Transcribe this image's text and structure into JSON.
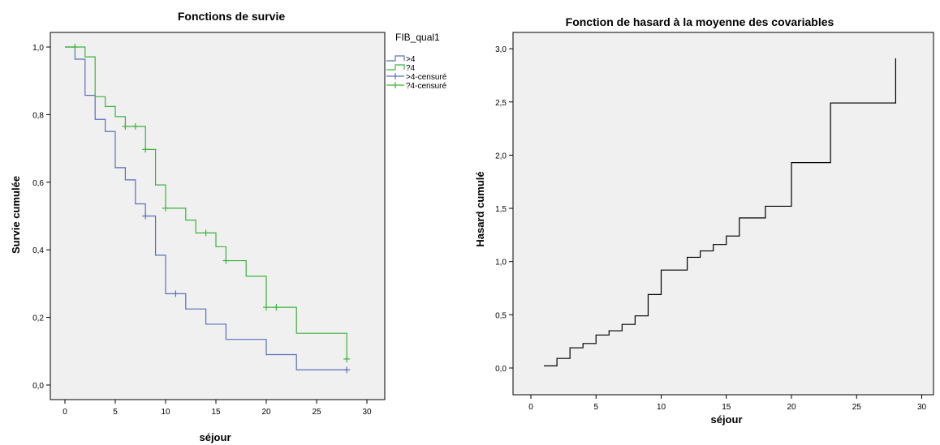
{
  "chart_data": [
    {
      "type": "line",
      "subtype": "step",
      "title": "Fonctions de survie",
      "xlabel": "séjour",
      "ylabel": "Survie cumulée",
      "xlim": [
        0,
        30
      ],
      "ylim": [
        0,
        1.0
      ],
      "xticks": [
        "0",
        "5",
        "10",
        "15",
        "20",
        "25",
        "30"
      ],
      "yticks": [
        "0,0",
        "0,2",
        "0,4",
        "0,6",
        "0,8",
        "1,0"
      ],
      "legend": {
        "title": "FIB_qual1",
        "placement": "top-right outside",
        "entries": [
          ">4",
          "?4",
          ">4-censuré",
          "?4-censuré"
        ]
      },
      "series": [
        {
          "name": ">4",
          "color": "#5a6fbd",
          "x": [
            0,
            1,
            2,
            3,
            4,
            5,
            6,
            7,
            8,
            9,
            10,
            12,
            14,
            16,
            20,
            23,
            28
          ],
          "y": [
            1.0,
            0.964,
            0.857,
            0.786,
            0.75,
            0.643,
            0.607,
            0.536,
            0.5,
            0.384,
            0.27,
            0.225,
            0.18,
            0.135,
            0.09,
            0.045,
            0.045
          ],
          "censored": [
            [
              8,
              0.5
            ],
            [
              11,
              0.27
            ],
            [
              28,
              0.045
            ]
          ]
        },
        {
          "name": "?4",
          "color": "#3cb33c",
          "x": [
            0,
            2,
            3,
            4,
            5,
            6,
            8,
            9,
            10,
            12,
            13,
            15,
            16,
            18,
            20,
            23,
            28
          ],
          "y": [
            1.0,
            0.971,
            0.853,
            0.824,
            0.794,
            0.765,
            0.697,
            0.592,
            0.523,
            0.488,
            0.45,
            0.409,
            0.368,
            0.322,
            0.23,
            0.153,
            0.077
          ],
          "censored": [
            [
              1,
              1.0
            ],
            [
              6,
              0.765
            ],
            [
              7,
              0.765
            ],
            [
              8,
              0.697
            ],
            [
              10,
              0.523
            ],
            [
              14,
              0.45
            ],
            [
              16,
              0.368
            ],
            [
              20,
              0.23
            ],
            [
              21,
              0.23
            ],
            [
              28,
              0.077
            ]
          ]
        }
      ]
    },
    {
      "type": "line",
      "subtype": "step",
      "title": "Fonction de hasard à la moyenne des covariables",
      "xlabel": "séjour",
      "ylabel": "Hasard cumulé",
      "xlim": [
        -1.5,
        31.5
      ],
      "ylim": [
        -0.25,
        3.08
      ],
      "xticks": [
        "0",
        "5",
        "10",
        "15",
        "20",
        "25",
        "30"
      ],
      "yticks": [
        "0,0",
        "0,5",
        "1,0",
        "1,5",
        "2,0",
        "2,5",
        "3,0"
      ],
      "series": [
        {
          "color": "#000000",
          "x": [
            1,
            2,
            3,
            4,
            5,
            6,
            7,
            8,
            9,
            10,
            12,
            13,
            14,
            15,
            16,
            18,
            20,
            23,
            28
          ],
          "y": [
            0.02,
            0.09,
            0.19,
            0.23,
            0.31,
            0.35,
            0.41,
            0.49,
            0.69,
            0.92,
            1.04,
            1.1,
            1.16,
            1.24,
            1.41,
            1.52,
            1.93,
            2.49,
            2.91
          ]
        }
      ]
    }
  ]
}
